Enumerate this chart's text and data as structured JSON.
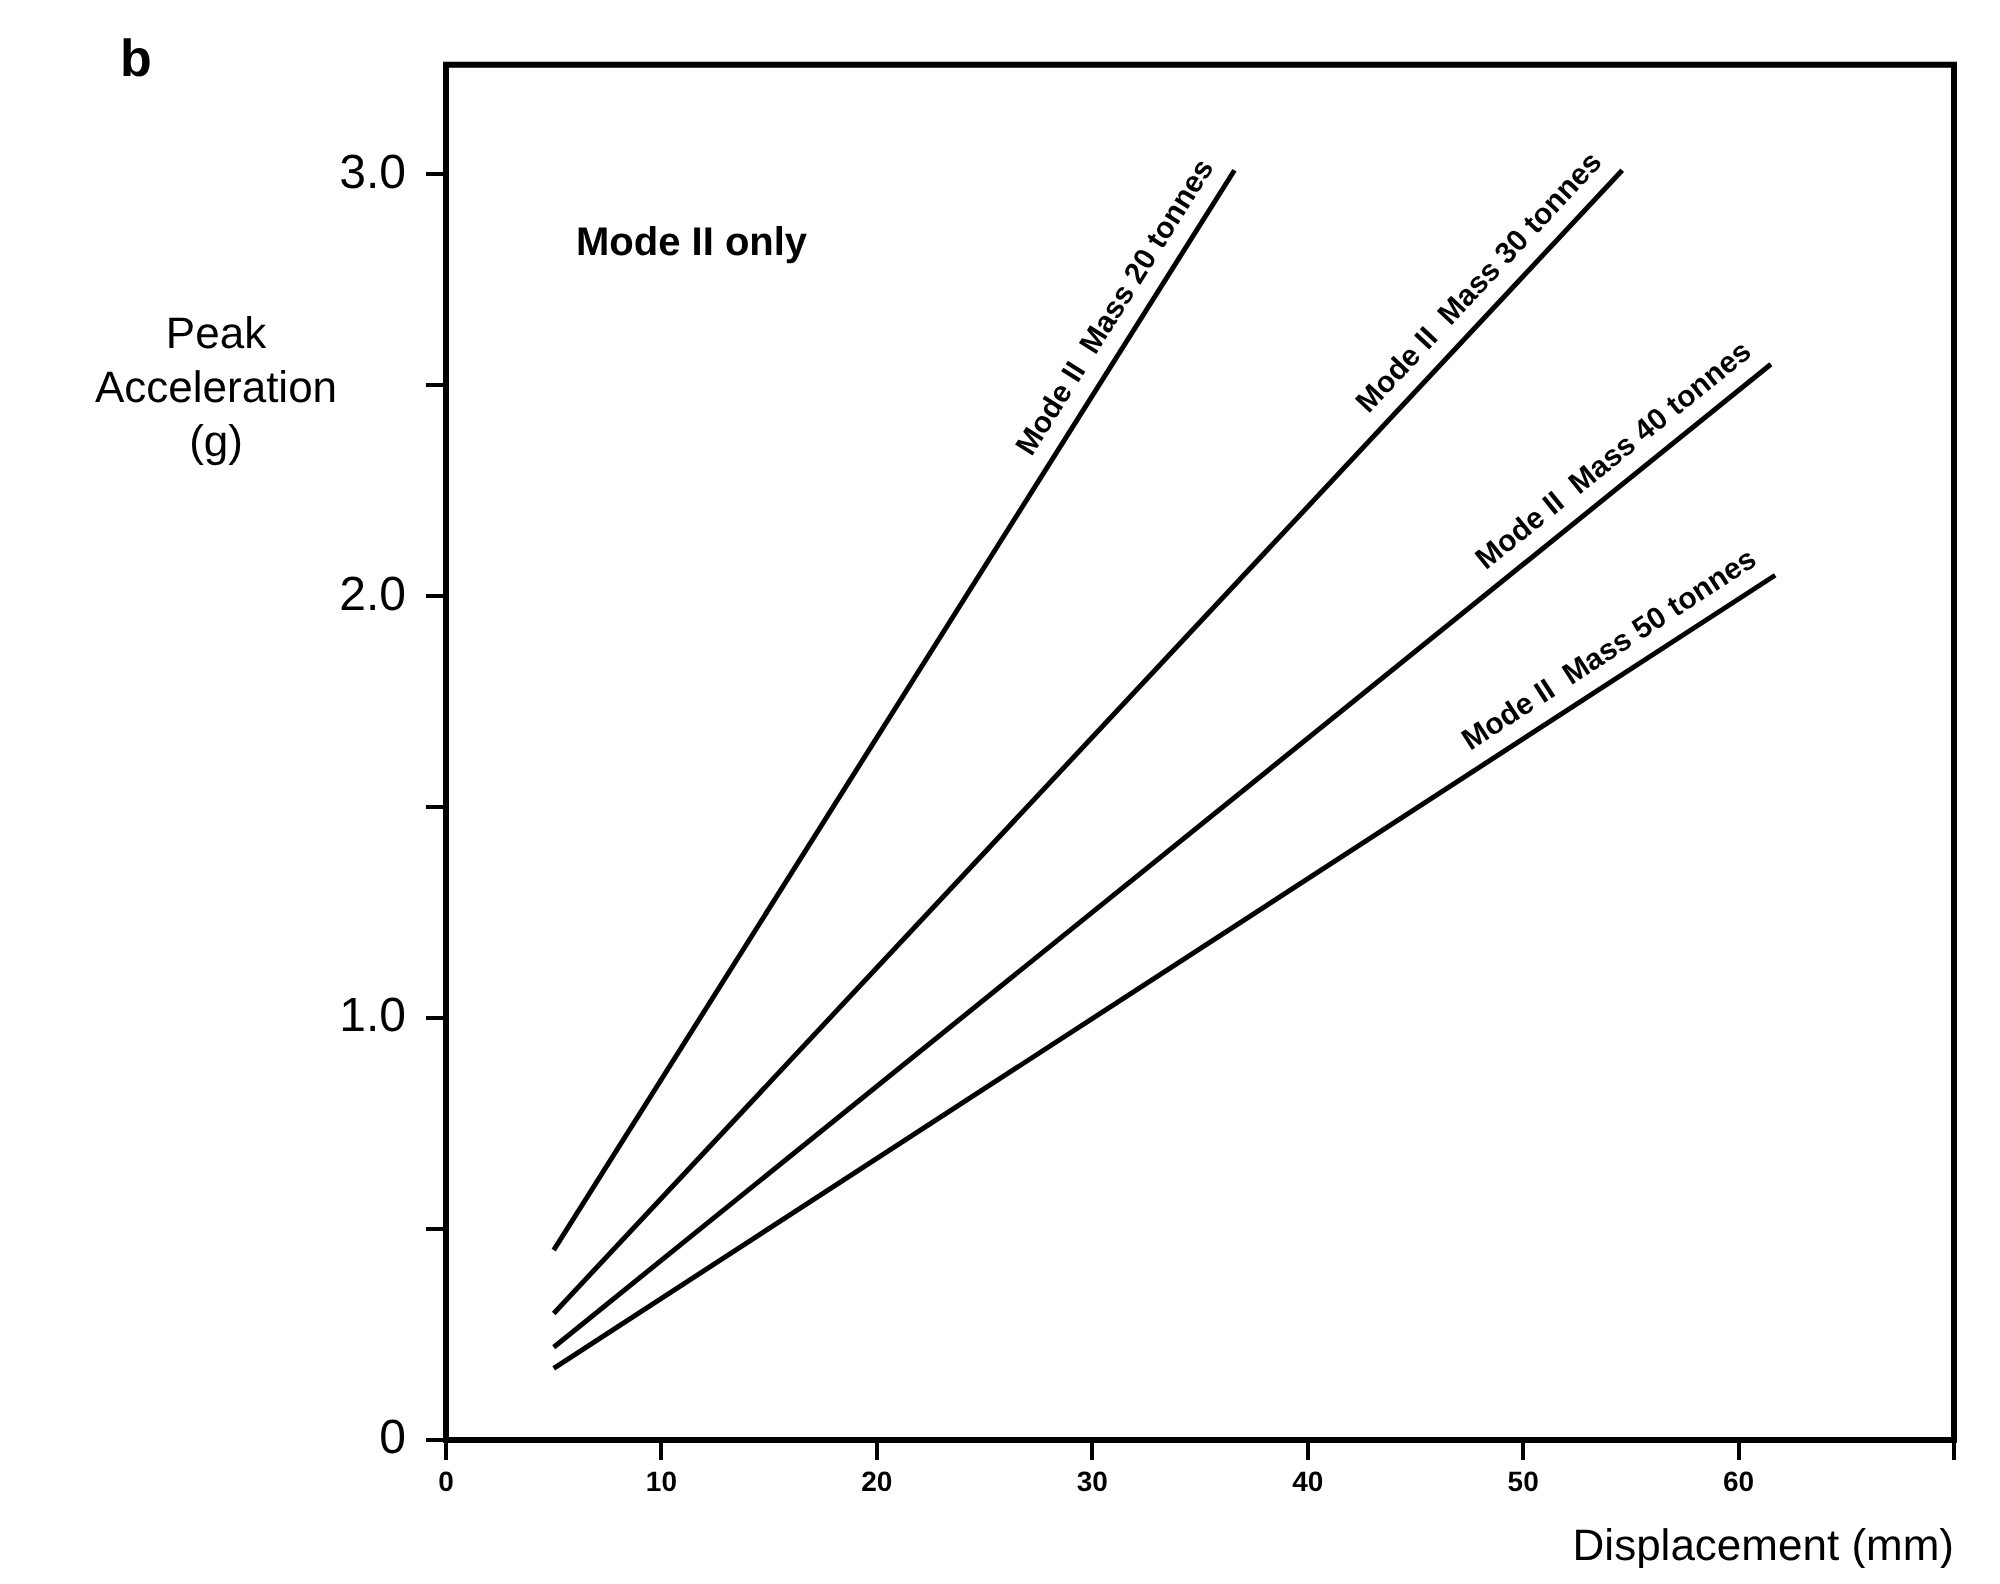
{
  "chart_data": {
    "type": "line",
    "xlabel": "Displacement (mm)",
    "ylabel": "Peak Acceleration (g)",
    "annotations": [
      "b",
      "Mode II only"
    ],
    "xlim": [
      0,
      70
    ],
    "xticks": [
      0,
      10,
      20,
      30,
      40,
      50,
      60,
      {
        "value": 70,
        "label": null
      }
    ],
    "ylim": [
      0,
      3.26
    ],
    "yticks": [
      0,
      {
        "value": 0.5,
        "label": null
      },
      {
        "value": 1,
        "label": "1.0"
      },
      {
        "value": 1.5,
        "label": null
      },
      {
        "value": 2,
        "label": "2.0"
      },
      {
        "value": 2.5,
        "label": null
      },
      {
        "value": 3,
        "label": "3.0"
      }
    ],
    "grid": false,
    "legend": false,
    "marker": "none",
    "line_style": "solid",
    "series": [
      {
        "name": "Mode II  Mass 20 tonnes",
        "color": "#000000",
        "x": [
          5,
          36.6
        ],
        "values": [
          0.45,
          3.01
        ]
      },
      {
        "name": "Mode II  Mass 30 tonnes",
        "color": "#000000",
        "x": [
          5,
          54.6
        ],
        "values": [
          0.3,
          3.01
        ]
      },
      {
        "name": "Mode II  Mass 40 tonnes",
        "color": "#000000",
        "x": [
          5,
          61.5
        ],
        "values": [
          0.22,
          2.55
        ]
      },
      {
        "name": "Mode II  Mass 50 tonnes",
        "color": "#000000",
        "x": [
          5,
          61.7
        ],
        "values": [
          0.17,
          2.05
        ]
      }
    ]
  }
}
